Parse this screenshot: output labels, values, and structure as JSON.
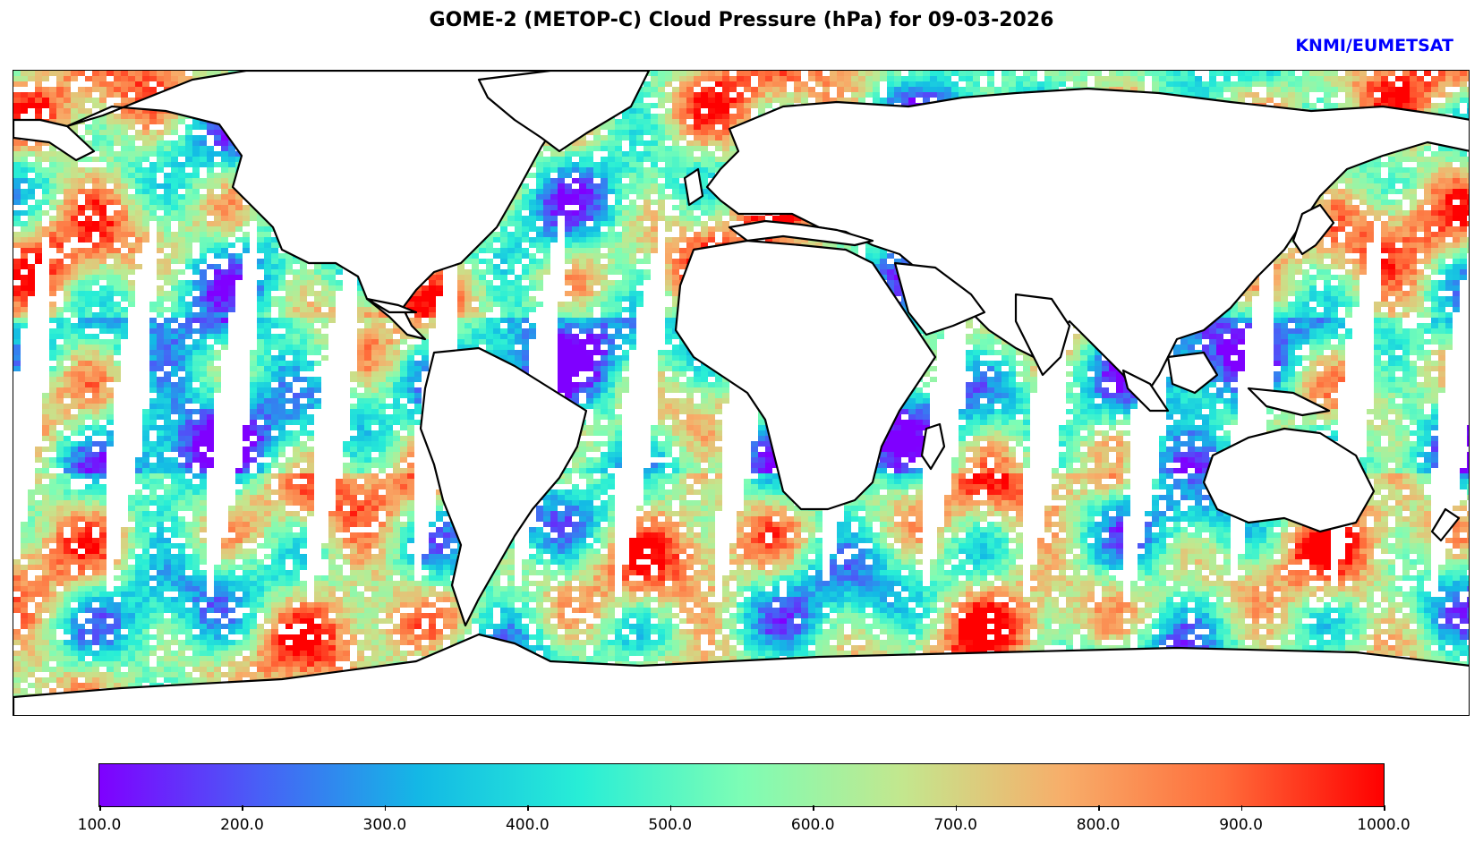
{
  "title": "GOME-2 (METOP-C) Cloud Pressure (hPa) for 09-03-2026",
  "credit": "KNMI/EUMETSAT",
  "colors": {
    "credit": "#0000ff",
    "colormap": [
      "#7f00ff",
      "#4860f6",
      "#13b9e5",
      "#28eed6",
      "#7dfdb5",
      "#c3e78e",
      "#f7ae6a",
      "#ff6c3a",
      "#ff0000"
    ]
  },
  "colorbar": {
    "label_unit": "hPa",
    "min": 100.0,
    "max": 1000.0,
    "ticks": [
      "100.0",
      "200.0",
      "300.0",
      "400.0",
      "500.0",
      "600.0",
      "700.0",
      "800.0",
      "900.0",
      "1000.0"
    ]
  },
  "map": {
    "projection": "equirectangular",
    "layers": [
      "satellite-swaths",
      "coastlines",
      "orbit-gaps"
    ]
  }
}
